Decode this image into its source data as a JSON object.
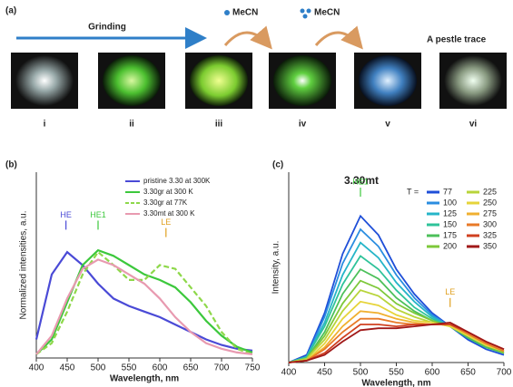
{
  "panel_a": {
    "label": "(a)",
    "arrow_text": "Grinding",
    "step1": "MeCN",
    "step2": "MeCN",
    "trace_text": "A pestle trace",
    "photos": [
      "i",
      "ii",
      "iii",
      "iv",
      "v",
      "vi"
    ]
  },
  "chart_data": [
    {
      "type": "line",
      "panel_label": "(b)",
      "x_label": "Wavelength, nm",
      "y_label": "Normalized intensities, a.u.",
      "x": [
        400,
        425,
        450,
        475,
        500,
        525,
        550,
        575,
        600,
        625,
        650,
        675,
        700,
        725,
        750
      ],
      "xlim": [
        400,
        750
      ],
      "xticks": [
        400,
        450,
        500,
        550,
        600,
        650,
        700,
        750
      ],
      "ylim": [
        0,
        1
      ],
      "annotations": [
        "HE",
        "HE1",
        "LE"
      ],
      "series": [
        {
          "name": "pristine 3.30 at 300K",
          "color": "#4a4ad6",
          "values": [
            0.1,
            0.45,
            0.57,
            0.5,
            0.4,
            0.32,
            0.28,
            0.25,
            0.22,
            0.18,
            0.14,
            0.1,
            0.07,
            0.05,
            0.04
          ]
        },
        {
          "name": "3.30gr at 300 K",
          "color": "#3cc83c",
          "values": [
            0.02,
            0.1,
            0.3,
            0.5,
            0.58,
            0.55,
            0.5,
            0.45,
            0.42,
            0.38,
            0.3,
            0.2,
            0.12,
            0.06,
            0.03
          ]
        },
        {
          "name": "3.30gr at 77K",
          "color": "#8ed84a",
          "dashed": true,
          "values": [
            0.02,
            0.08,
            0.25,
            0.45,
            0.57,
            0.5,
            0.42,
            0.42,
            0.5,
            0.48,
            0.38,
            0.28,
            0.14,
            0.05,
            0.02
          ]
        },
        {
          "name": "3.30mt at 300 K",
          "color": "#e89ab0",
          "values": [
            0.02,
            0.12,
            0.32,
            0.48,
            0.53,
            0.5,
            0.45,
            0.4,
            0.32,
            0.22,
            0.14,
            0.08,
            0.05,
            0.03,
            0.02
          ]
        }
      ]
    },
    {
      "type": "line",
      "panel_label": "(c)",
      "title": "3.30mt",
      "x_label": "Wavelength, nm",
      "y_label": "Intensity, a.u.",
      "legend_title": "T =",
      "x": [
        400,
        425,
        450,
        475,
        500,
        525,
        550,
        575,
        600,
        625,
        650,
        675,
        700
      ],
      "xlim": [
        400,
        700
      ],
      "xticks": [
        400,
        450,
        500,
        550,
        600,
        650,
        700
      ],
      "ylim": [
        0,
        1
      ],
      "annotations": [
        "HE1",
        "LE"
      ],
      "series": [
        {
          "name": "77",
          "color": "#1f4fd8",
          "values": [
            0,
            0.04,
            0.26,
            0.57,
            0.77,
            0.67,
            0.49,
            0.36,
            0.26,
            0.19,
            0.12,
            0.07,
            0.04
          ]
        },
        {
          "name": "100",
          "color": "#2a8de0",
          "values": [
            0,
            0.03,
            0.24,
            0.52,
            0.7,
            0.61,
            0.46,
            0.34,
            0.25,
            0.19,
            0.13,
            0.08,
            0.05
          ]
        },
        {
          "name": "125",
          "color": "#25b5c8",
          "values": [
            0,
            0.03,
            0.21,
            0.46,
            0.63,
            0.55,
            0.42,
            0.32,
            0.24,
            0.19,
            0.13,
            0.08,
            0.05
          ]
        },
        {
          "name": "150",
          "color": "#2fc39a",
          "values": [
            0,
            0.03,
            0.19,
            0.41,
            0.56,
            0.49,
            0.38,
            0.29,
            0.23,
            0.19,
            0.13,
            0.08,
            0.05
          ]
        },
        {
          "name": "175",
          "color": "#4cc05a",
          "values": [
            0,
            0.02,
            0.16,
            0.36,
            0.49,
            0.44,
            0.34,
            0.27,
            0.22,
            0.19,
            0.13,
            0.08,
            0.05
          ]
        },
        {
          "name": "200",
          "color": "#7ec83a",
          "values": [
            0,
            0.02,
            0.14,
            0.31,
            0.43,
            0.39,
            0.31,
            0.26,
            0.22,
            0.19,
            0.14,
            0.09,
            0.05
          ]
        },
        {
          "name": "225",
          "color": "#b8d43a",
          "values": [
            0,
            0.02,
            0.12,
            0.27,
            0.38,
            0.35,
            0.28,
            0.24,
            0.21,
            0.19,
            0.14,
            0.09,
            0.06
          ]
        },
        {
          "name": "250",
          "color": "#e6d43a",
          "values": [
            0,
            0.01,
            0.1,
            0.23,
            0.32,
            0.3,
            0.25,
            0.22,
            0.21,
            0.19,
            0.14,
            0.09,
            0.06
          ]
        },
        {
          "name": "275",
          "color": "#f0b030",
          "values": [
            0,
            0.01,
            0.08,
            0.19,
            0.27,
            0.26,
            0.23,
            0.21,
            0.2,
            0.2,
            0.15,
            0.1,
            0.06
          ]
        },
        {
          "name": "300",
          "color": "#e87a28",
          "values": [
            0,
            0.01,
            0.07,
            0.16,
            0.23,
            0.23,
            0.21,
            0.2,
            0.2,
            0.2,
            0.15,
            0.1,
            0.06
          ]
        },
        {
          "name": "325",
          "color": "#d04020",
          "values": [
            0,
            0.01,
            0.05,
            0.13,
            0.2,
            0.2,
            0.19,
            0.2,
            0.2,
            0.2,
            0.16,
            0.11,
            0.07
          ]
        },
        {
          "name": "350",
          "color": "#a01818",
          "values": [
            0,
            0.01,
            0.04,
            0.11,
            0.17,
            0.18,
            0.18,
            0.19,
            0.2,
            0.21,
            0.16,
            0.11,
            0.07
          ]
        }
      ]
    }
  ]
}
